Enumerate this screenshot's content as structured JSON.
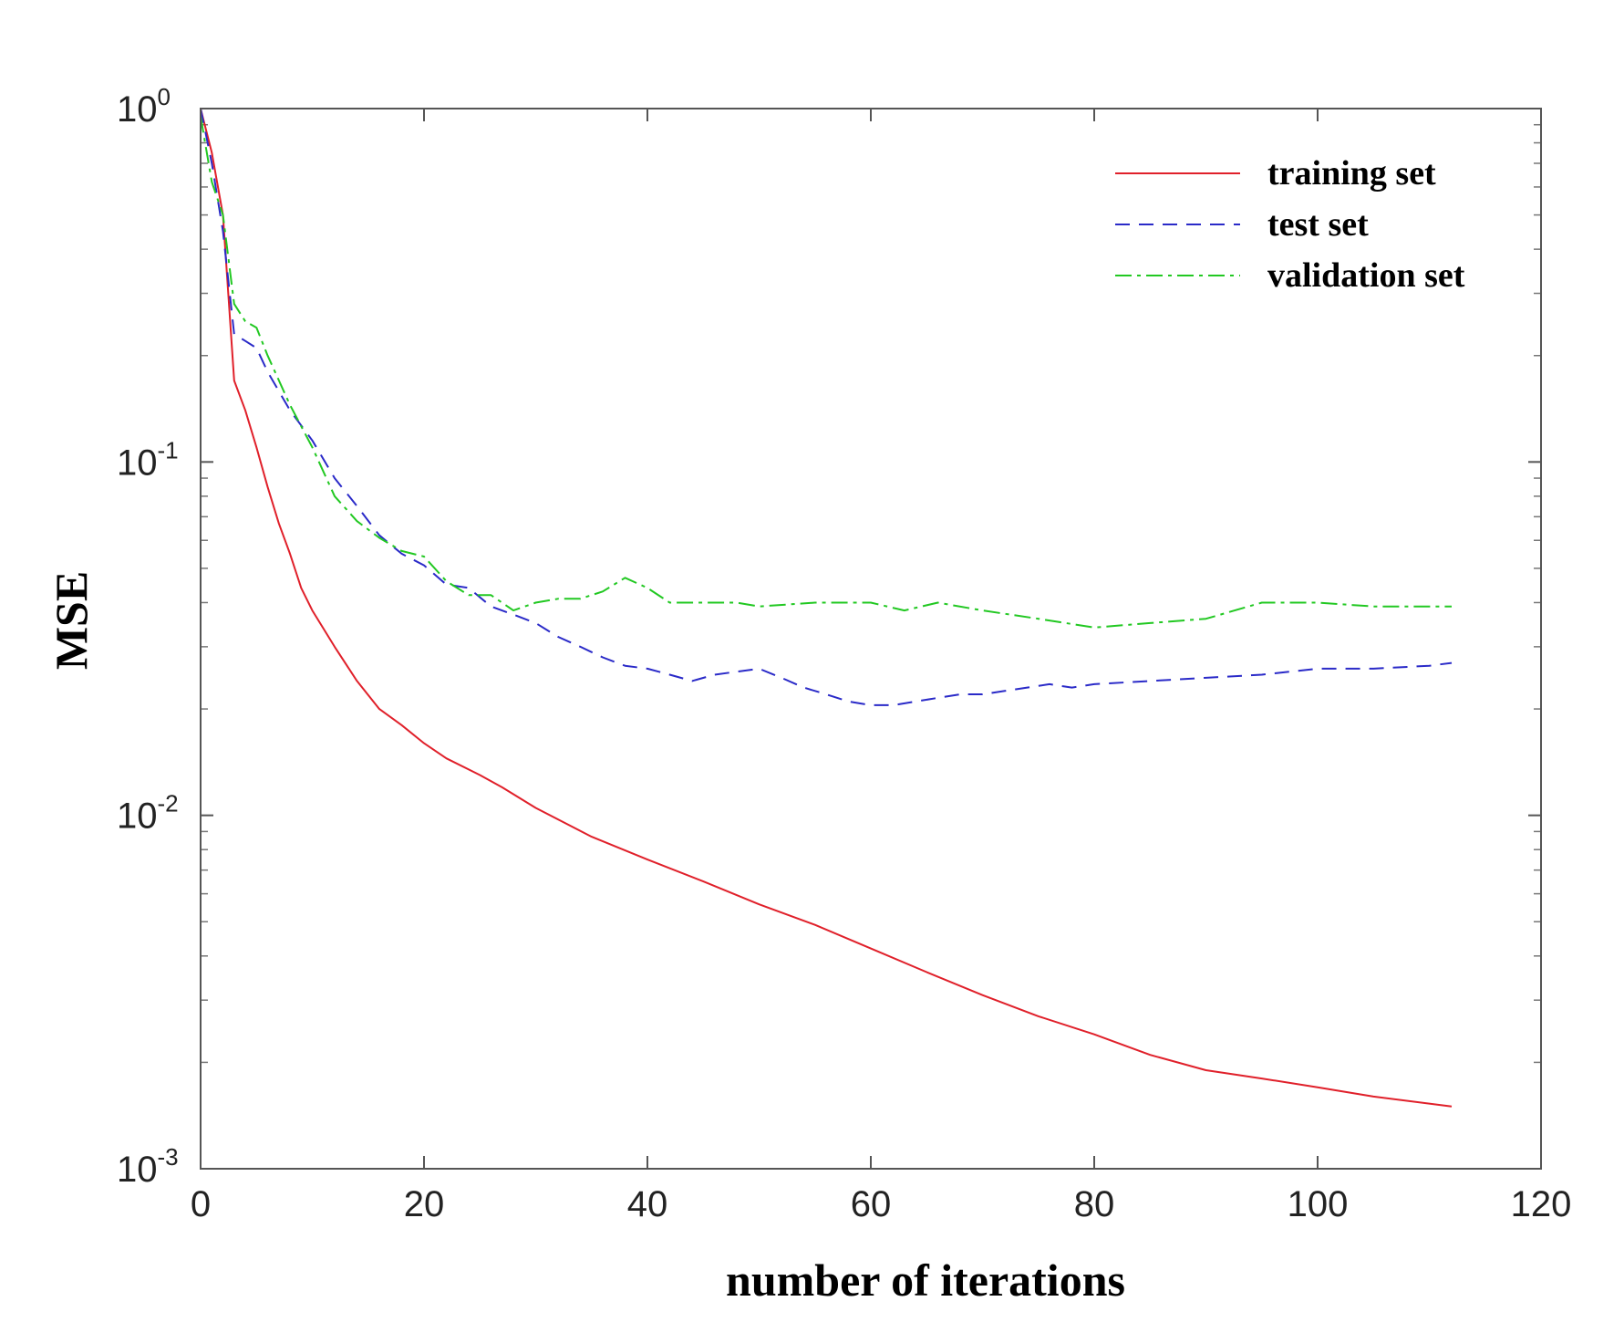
{
  "chart_data": {
    "type": "line",
    "title": "",
    "xlabel": "number of iterations",
    "ylabel": "MSE",
    "xlim": [
      0,
      120
    ],
    "ylim": [
      0.001,
      1
    ],
    "yscale": "log",
    "grid": false,
    "legend_position": "top-right",
    "x_ticks": [
      0,
      20,
      40,
      60,
      80,
      100,
      120
    ],
    "y_ticks": [
      {
        "value": 1,
        "base": "10",
        "exp": "0"
      },
      {
        "value": 0.1,
        "base": "10",
        "exp": "-1"
      },
      {
        "value": 0.01,
        "base": "10",
        "exp": "-2"
      },
      {
        "value": 0.001,
        "base": "10",
        "exp": "-3"
      }
    ],
    "series": [
      {
        "name": "training set",
        "color": "#e0202a",
        "dash": "none",
        "points": [
          [
            0,
            1.0
          ],
          [
            1,
            0.75
          ],
          [
            2,
            0.5
          ],
          [
            3,
            0.17
          ],
          [
            4,
            0.14
          ],
          [
            5,
            0.11
          ],
          [
            6,
            0.085
          ],
          [
            7,
            0.067
          ],
          [
            8,
            0.055
          ],
          [
            9,
            0.044
          ],
          [
            10,
            0.038
          ],
          [
            12,
            0.03
          ],
          [
            14,
            0.024
          ],
          [
            16,
            0.02
          ],
          [
            18,
            0.018
          ],
          [
            20,
            0.016
          ],
          [
            22,
            0.0145
          ],
          [
            25,
            0.013
          ],
          [
            27,
            0.012
          ],
          [
            30,
            0.0105
          ],
          [
            35,
            0.0087
          ],
          [
            40,
            0.0075
          ],
          [
            45,
            0.0065
          ],
          [
            50,
            0.0056
          ],
          [
            55,
            0.0049
          ],
          [
            60,
            0.0042
          ],
          [
            65,
            0.0036
          ],
          [
            70,
            0.0031
          ],
          [
            75,
            0.0027
          ],
          [
            80,
            0.0024
          ],
          [
            85,
            0.0021
          ],
          [
            90,
            0.0019
          ],
          [
            95,
            0.0018
          ],
          [
            100,
            0.0017
          ],
          [
            105,
            0.0016
          ],
          [
            112,
            0.0015
          ]
        ]
      },
      {
        "name": "test set",
        "color": "#2a2ac8",
        "dash": "16,10",
        "points": [
          [
            0,
            1.0
          ],
          [
            1,
            0.7
          ],
          [
            2,
            0.45
          ],
          [
            3,
            0.23
          ],
          [
            4,
            0.22
          ],
          [
            5,
            0.21
          ],
          [
            6,
            0.18
          ],
          [
            8,
            0.14
          ],
          [
            10,
            0.115
          ],
          [
            12,
            0.09
          ],
          [
            14,
            0.075
          ],
          [
            16,
            0.062
          ],
          [
            18,
            0.055
          ],
          [
            20,
            0.051
          ],
          [
            22,
            0.045
          ],
          [
            24,
            0.044
          ],
          [
            26,
            0.039
          ],
          [
            28,
            0.037
          ],
          [
            30,
            0.035
          ],
          [
            32,
            0.032
          ],
          [
            34,
            0.03
          ],
          [
            36,
            0.028
          ],
          [
            38,
            0.0265
          ],
          [
            40,
            0.026
          ],
          [
            42,
            0.025
          ],
          [
            44,
            0.024
          ],
          [
            46,
            0.025
          ],
          [
            48,
            0.0255
          ],
          [
            50,
            0.026
          ],
          [
            52,
            0.0245
          ],
          [
            54,
            0.023
          ],
          [
            56,
            0.022
          ],
          [
            58,
            0.021
          ],
          [
            60,
            0.0205
          ],
          [
            62,
            0.0205
          ],
          [
            64,
            0.021
          ],
          [
            66,
            0.0215
          ],
          [
            68,
            0.022
          ],
          [
            70,
            0.022
          ],
          [
            72,
            0.0225
          ],
          [
            74,
            0.023
          ],
          [
            76,
            0.0235
          ],
          [
            78,
            0.023
          ],
          [
            80,
            0.0235
          ],
          [
            85,
            0.024
          ],
          [
            90,
            0.0245
          ],
          [
            95,
            0.025
          ],
          [
            100,
            0.026
          ],
          [
            105,
            0.026
          ],
          [
            110,
            0.0265
          ],
          [
            112,
            0.027
          ]
        ]
      },
      {
        "name": "validation set",
        "color": "#22c822",
        "dash": "18,6,4,6",
        "points": [
          [
            0,
            0.95
          ],
          [
            1,
            0.62
          ],
          [
            2,
            0.5
          ],
          [
            3,
            0.28
          ],
          [
            4,
            0.25
          ],
          [
            5,
            0.24
          ],
          [
            6,
            0.2
          ],
          [
            8,
            0.145
          ],
          [
            10,
            0.11
          ],
          [
            12,
            0.08
          ],
          [
            14,
            0.068
          ],
          [
            16,
            0.061
          ],
          [
            18,
            0.056
          ],
          [
            20,
            0.054
          ],
          [
            22,
            0.046
          ],
          [
            24,
            0.042
          ],
          [
            26,
            0.042
          ],
          [
            28,
            0.038
          ],
          [
            30,
            0.04
          ],
          [
            32,
            0.041
          ],
          [
            34,
            0.041
          ],
          [
            36,
            0.043
          ],
          [
            38,
            0.047
          ],
          [
            40,
            0.044
          ],
          [
            42,
            0.04
          ],
          [
            44,
            0.04
          ],
          [
            46,
            0.04
          ],
          [
            48,
            0.04
          ],
          [
            50,
            0.039
          ],
          [
            55,
            0.04
          ],
          [
            60,
            0.04
          ],
          [
            63,
            0.038
          ],
          [
            66,
            0.04
          ],
          [
            70,
            0.038
          ],
          [
            75,
            0.036
          ],
          [
            80,
            0.034
          ],
          [
            85,
            0.035
          ],
          [
            90,
            0.036
          ],
          [
            95,
            0.04
          ],
          [
            100,
            0.04
          ],
          [
            105,
            0.039
          ],
          [
            112,
            0.039
          ]
        ]
      }
    ]
  }
}
